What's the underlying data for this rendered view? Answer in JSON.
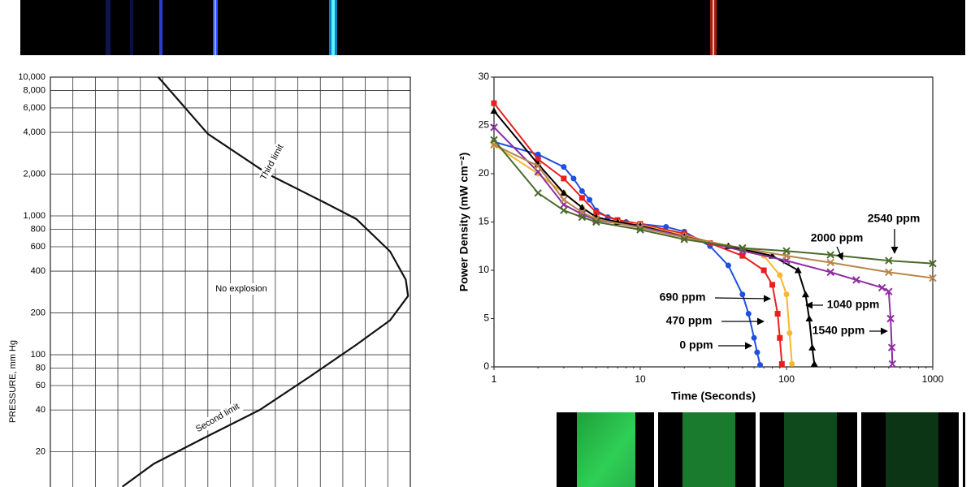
{
  "chart_data": [
    {
      "type": "line",
      "ylabel": "PRESSURE, mm Hg",
      "ylog": true,
      "xlim": [
        0,
        16
      ],
      "ylim": [
        11,
        10000
      ],
      "yticks": [
        20,
        40,
        60,
        80,
        100,
        200,
        400,
        600,
        800,
        {
          "value": 1000,
          "label": "1,000"
        },
        {
          "value": 2000,
          "label": "2,000"
        },
        {
          "value": 4000,
          "label": "4,000"
        },
        {
          "value": 6000,
          "label": "6,000"
        },
        {
          "value": 8000,
          "label": "8,000"
        },
        {
          "value": 10000,
          "label": "10,000"
        }
      ],
      "grid": true,
      "series": [
        {
          "color": "#111111",
          "x": [
            4.8,
            7.0,
            9.7,
            12.2,
            13.6,
            15.1,
            15.8,
            15.9,
            15.1,
            13.6,
            11.5,
            9.3,
            6.8,
            4.6,
            3.2
          ],
          "values": [
            10000,
            3900,
            1990,
            1245,
            950,
            555,
            347,
            265,
            177,
            118,
            69,
            40,
            25,
            16.4,
            11.2
          ]
        }
      ],
      "annotations": [
        "Third limit",
        "No explosion",
        "Second limit"
      ]
    },
    {
      "type": "line",
      "xlabel": "Time (Seconds)",
      "ylabel": "Power Density (mW cm⁻²)",
      "xlog": true,
      "markers": true,
      "xlim": [
        1,
        1000
      ],
      "ylim": [
        0,
        30
      ],
      "xticks": [
        1,
        10,
        100,
        1000
      ],
      "yticks": [
        0,
        5,
        10,
        15,
        20,
        25,
        30
      ],
      "series": [
        {
          "name": "0 ppm",
          "color": "#1f4fe0",
          "marker": "circle",
          "x": [
            1,
            2,
            3,
            3.5,
            4,
            4.5,
            5,
            6,
            7,
            8,
            10,
            15,
            20,
            30,
            40,
            50,
            55,
            60,
            63,
            66
          ],
          "values": [
            23.3,
            22.0,
            20.7,
            19.5,
            18.2,
            17.3,
            16.2,
            15.5,
            15.2,
            15.0,
            14.8,
            14.5,
            14.0,
            12.5,
            10.5,
            7.5,
            5.5,
            3.0,
            1.5,
            0.2
          ]
        },
        {
          "name": "470 ppm",
          "color": "#e8201e",
          "marker": "square",
          "x": [
            1,
            2,
            3,
            4,
            5,
            7,
            10,
            20,
            30,
            50,
            70,
            80,
            87,
            90,
            93
          ],
          "values": [
            27.3,
            21.5,
            19.5,
            17.5,
            16.0,
            15.2,
            14.8,
            13.8,
            12.8,
            11.5,
            10.0,
            8.5,
            5.5,
            3.0,
            0.3
          ]
        },
        {
          "name": "690 ppm",
          "color": "#f7b731",
          "marker": "circle",
          "x": [
            1,
            2,
            3,
            4,
            5,
            7,
            10,
            20,
            40,
            70,
            90,
            100,
            105,
            109
          ],
          "values": [
            23.0,
            20.0,
            18.0,
            16.5,
            15.5,
            15.0,
            14.7,
            13.6,
            12.5,
            11.5,
            9.5,
            7.5,
            3.5,
            0.3
          ]
        },
        {
          "name": "1040 ppm",
          "color": "#000000",
          "marker": "triangle",
          "x": [
            1,
            2,
            3,
            4,
            5,
            7,
            10,
            20,
            40,
            80,
            120,
            135,
            143,
            150,
            155
          ],
          "values": [
            26.5,
            21.0,
            18.0,
            16.5,
            15.5,
            15.0,
            14.6,
            13.5,
            12.5,
            11.5,
            10.0,
            7.5,
            5.0,
            2.0,
            0.3
          ]
        },
        {
          "name": "1540 ppm",
          "color": "#8e2ea0",
          "marker": "x",
          "x": [
            1,
            2,
            3,
            4,
            5,
            10,
            20,
            50,
            100,
            200,
            300,
            450,
            500,
            515,
            525,
            530
          ],
          "values": [
            24.8,
            20.2,
            16.8,
            15.8,
            15.2,
            14.5,
            13.5,
            12.0,
            11.0,
            9.8,
            9.0,
            8.2,
            7.8,
            5.0,
            2.0,
            0.3
          ]
        },
        {
          "name": "2000 ppm",
          "color": "#b8864e",
          "marker": "x",
          "x": [
            1,
            2,
            3,
            4,
            5,
            10,
            20,
            50,
            100,
            200,
            500,
            1000
          ],
          "values": [
            23.0,
            20.8,
            17.3,
            16.0,
            15.3,
            14.4,
            13.4,
            12.3,
            11.5,
            10.8,
            9.8,
            9.2
          ]
        },
        {
          "name": "2540 ppm",
          "color": "#4a6b2a",
          "marker": "x",
          "x": [
            1,
            2,
            3,
            4,
            5,
            10,
            20,
            50,
            100,
            200,
            500,
            1000
          ],
          "values": [
            23.5,
            18.0,
            16.2,
            15.5,
            15.0,
            14.2,
            13.2,
            12.3,
            12.0,
            11.6,
            11.0,
            10.7
          ]
        }
      ]
    }
  ]
}
